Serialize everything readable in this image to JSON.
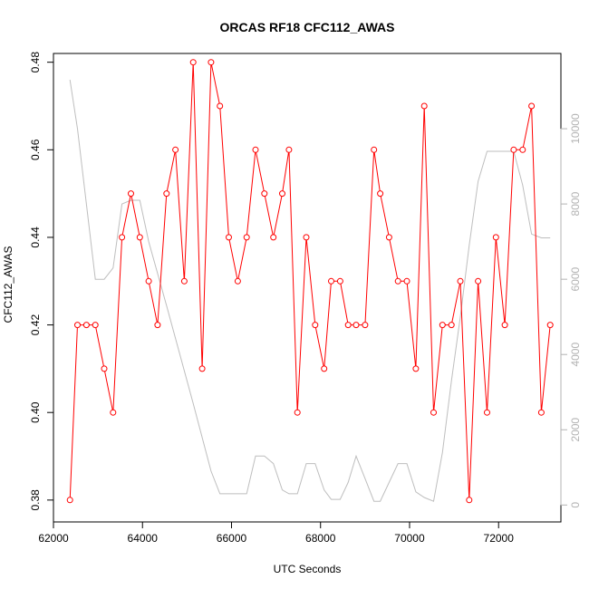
{
  "chart_data": {
    "type": "line",
    "title": "ORCAS RF18 CFC112_AWAS",
    "xlabel": "UTC Seconds",
    "ylabel": "CFC112_AWAS",
    "xlim": [
      62000,
      73400
    ],
    "ylim": [
      0.375,
      0.482
    ],
    "y2lim": [
      -450,
      12000
    ],
    "xticks": [
      62000,
      64000,
      66000,
      68000,
      70000,
      72000
    ],
    "xtick_labels": [
      "62000",
      "64000",
      "66000",
      "68000",
      "70000",
      "72000"
    ],
    "yticks": [
      0.38,
      0.4,
      0.42,
      0.44,
      0.46,
      0.48
    ],
    "ytick_labels": [
      "0.38",
      "0.40",
      "0.42",
      "0.44",
      "0.46",
      "0.48"
    ],
    "y2ticks": [
      0,
      2000,
      4000,
      6000,
      8000,
      10000
    ],
    "y2tick_labels": [
      "0",
      "2000",
      "4000",
      "6000",
      "8000",
      "10000"
    ],
    "grid": false,
    "legend": "none",
    "series": [
      {
        "color": "#ff0000",
        "axis": "left",
        "marker": "open-circle",
        "x": [
          62370,
          62540,
          62740,
          62940,
          63140,
          63340,
          63540,
          63740,
          63940,
          64140,
          64340,
          64540,
          64740,
          64940,
          65140,
          65340,
          65540,
          65740,
          65940,
          66140,
          66340,
          66540,
          66740,
          66940,
          67140,
          67290,
          67480,
          67680,
          67880,
          68080,
          68240,
          68440,
          68620,
          68800,
          69000,
          69200,
          69340,
          69540,
          69740,
          69940,
          70140,
          70330,
          70540,
          70740,
          70940,
          71140,
          71340,
          71540,
          71740,
          71940,
          72140,
          72340,
          72540,
          72740,
          72960,
          73160
        ],
        "y": [
          0.38,
          0.42,
          0.42,
          0.42,
          0.41,
          0.4,
          0.44,
          0.45,
          0.44,
          0.43,
          0.42,
          0.45,
          0.46,
          0.43,
          0.48,
          0.41,
          0.48,
          0.47,
          0.44,
          0.43,
          0.44,
          0.46,
          0.45,
          0.44,
          0.45,
          0.46,
          0.4,
          0.44,
          0.42,
          0.41,
          0.43,
          0.43,
          0.42,
          0.42,
          0.42,
          0.46,
          0.45,
          0.44,
          0.43,
          0.43,
          0.41,
          0.47,
          0.4,
          0.42,
          0.42,
          0.43,
          0.38,
          0.43,
          0.4,
          0.44,
          0.42,
          0.46,
          0.46,
          0.47,
          0.4,
          0.42
        ]
      },
      {
        "color": "#bebebe",
        "axis": "right",
        "marker": "none",
        "x": [
          62370,
          62540,
          62940,
          63140,
          63340,
          63540,
          63740,
          63940,
          64140,
          64540,
          65140,
          65540,
          65740,
          65940,
          66140,
          66340,
          66540,
          66740,
          66940,
          67140,
          67290,
          67480,
          67680,
          67880,
          68080,
          68240,
          68440,
          68620,
          68800,
          69000,
          69200,
          69340,
          69540,
          69740,
          69940,
          70140,
          70330,
          70540,
          70740,
          70940,
          71140,
          71340,
          71540,
          71740,
          71940,
          72140,
          72340,
          72540,
          72740,
          72960,
          73160
        ],
        "y": [
          11300,
          10000,
          6000,
          6000,
          6300,
          8000,
          8100,
          8100,
          7000,
          5300,
          2700,
          900,
          300,
          300,
          300,
          300,
          1300,
          1300,
          1100,
          400,
          300,
          300,
          1100,
          1100,
          400,
          150,
          150,
          600,
          1300,
          700,
          100,
          100,
          600,
          1100,
          1100,
          350,
          200,
          100,
          1400,
          3300,
          5000,
          6900,
          8600,
          9400,
          9400,
          9400,
          9400,
          8500,
          7200,
          7100,
          7100
        ]
      }
    ]
  }
}
